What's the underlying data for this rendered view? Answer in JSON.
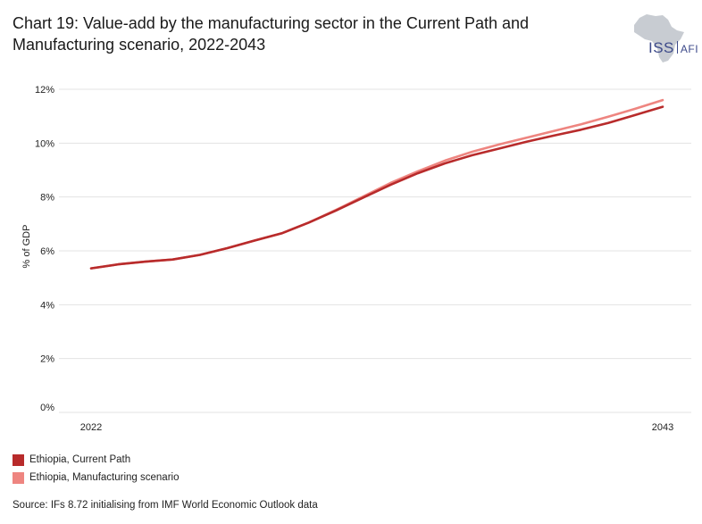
{
  "header": {
    "title_line1": "Chart 19: Value-add by the manufacturing sector in the Current Path and",
    "title_line2": "Manufacturing scenario, 2022-2043"
  },
  "logo": {
    "icon": "africa-map-icon",
    "text_main": "ISS",
    "text_sub": "AFI"
  },
  "source": "Source: IFs 8.72 initialising from IMF World Economic Outlook data",
  "chart_data": {
    "type": "line",
    "ylabel": "% of GDP",
    "xlabel": "",
    "ylim": [
      0,
      12
    ],
    "yticks": [
      "0%",
      "2%",
      "4%",
      "6%",
      "8%",
      "10%",
      "12%"
    ],
    "xticks": [
      "2022",
      "2043"
    ],
    "x": [
      2022,
      2023,
      2024,
      2025,
      2026,
      2027,
      2028,
      2029,
      2030,
      2031,
      2032,
      2033,
      2034,
      2035,
      2036,
      2037,
      2038,
      2039,
      2040,
      2041,
      2042,
      2043
    ],
    "series": [
      {
        "name": "Ethiopia, Current Path",
        "color": "#b82b2b",
        "values": [
          5.35,
          5.5,
          5.6,
          5.68,
          5.85,
          6.1,
          6.38,
          6.65,
          7.05,
          7.5,
          7.98,
          8.45,
          8.88,
          9.25,
          9.55,
          9.8,
          10.05,
          10.28,
          10.5,
          10.75,
          11.05,
          11.35
        ]
      },
      {
        "name": "Ethiopia, Manufacturing scenario",
        "color": "#ee8580",
        "values": [
          5.35,
          5.5,
          5.6,
          5.68,
          5.85,
          6.1,
          6.38,
          6.65,
          7.05,
          7.52,
          8.02,
          8.52,
          8.95,
          9.35,
          9.68,
          9.95,
          10.2,
          10.45,
          10.7,
          10.98,
          11.28,
          11.6
        ]
      }
    ],
    "grid": true,
    "legend_position": "bottom-left"
  }
}
